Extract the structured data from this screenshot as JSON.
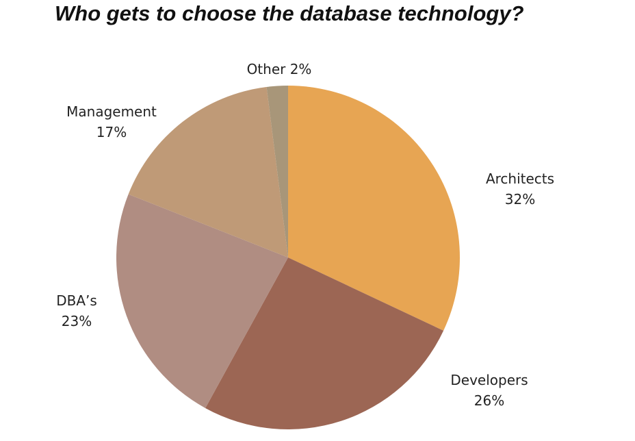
{
  "chart_data": {
    "type": "pie",
    "title": "Who gets to choose the database technology?",
    "start": "top",
    "direction": "clockwise",
    "slices": [
      {
        "label": "Architects",
        "value": 32,
        "value_label": "32%",
        "color": "#E7A553"
      },
      {
        "label": "Developers",
        "value": 26,
        "value_label": "26%",
        "color": "#9C6654"
      },
      {
        "label": "DBA’s",
        "value": 23,
        "value_label": "23%",
        "color": "#B08D82"
      },
      {
        "label": "Management",
        "value": 17,
        "value_label": "17%",
        "color": "#BF9A77"
      },
      {
        "label": "Other",
        "value": 2,
        "value_label": "2%",
        "color": "#A89679"
      }
    ]
  }
}
